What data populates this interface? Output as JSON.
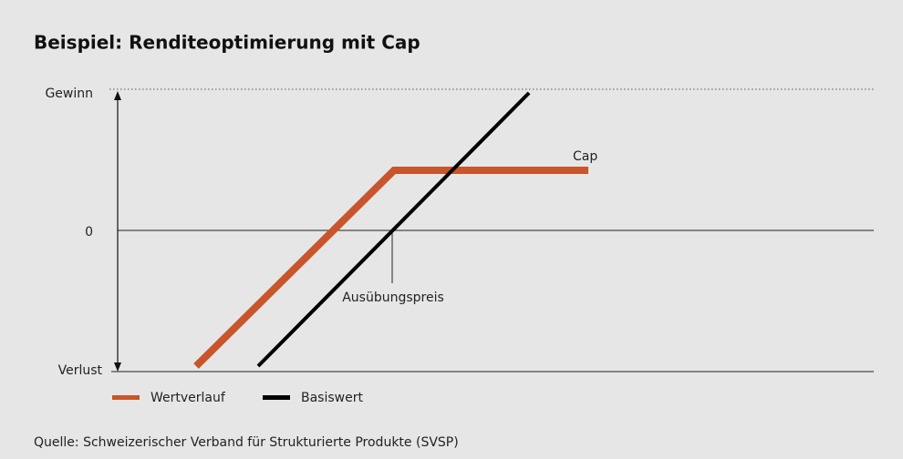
{
  "title": "Beispiel: Renditeoptimierung mit Cap",
  "axis_labels": {
    "top": "Gewinn",
    "middle": "0",
    "bottom": "Verlust"
  },
  "annotations": {
    "cap": "Cap",
    "strike": "Ausübungspreis"
  },
  "legend": [
    {
      "name": "Wertverlauf",
      "color": "#c8552b"
    },
    {
      "name": "Basiswert",
      "color": "#000000"
    }
  ],
  "source": "Quelle: Schweizerischer Verband für Strukturierte Produkte (SVSP)"
}
